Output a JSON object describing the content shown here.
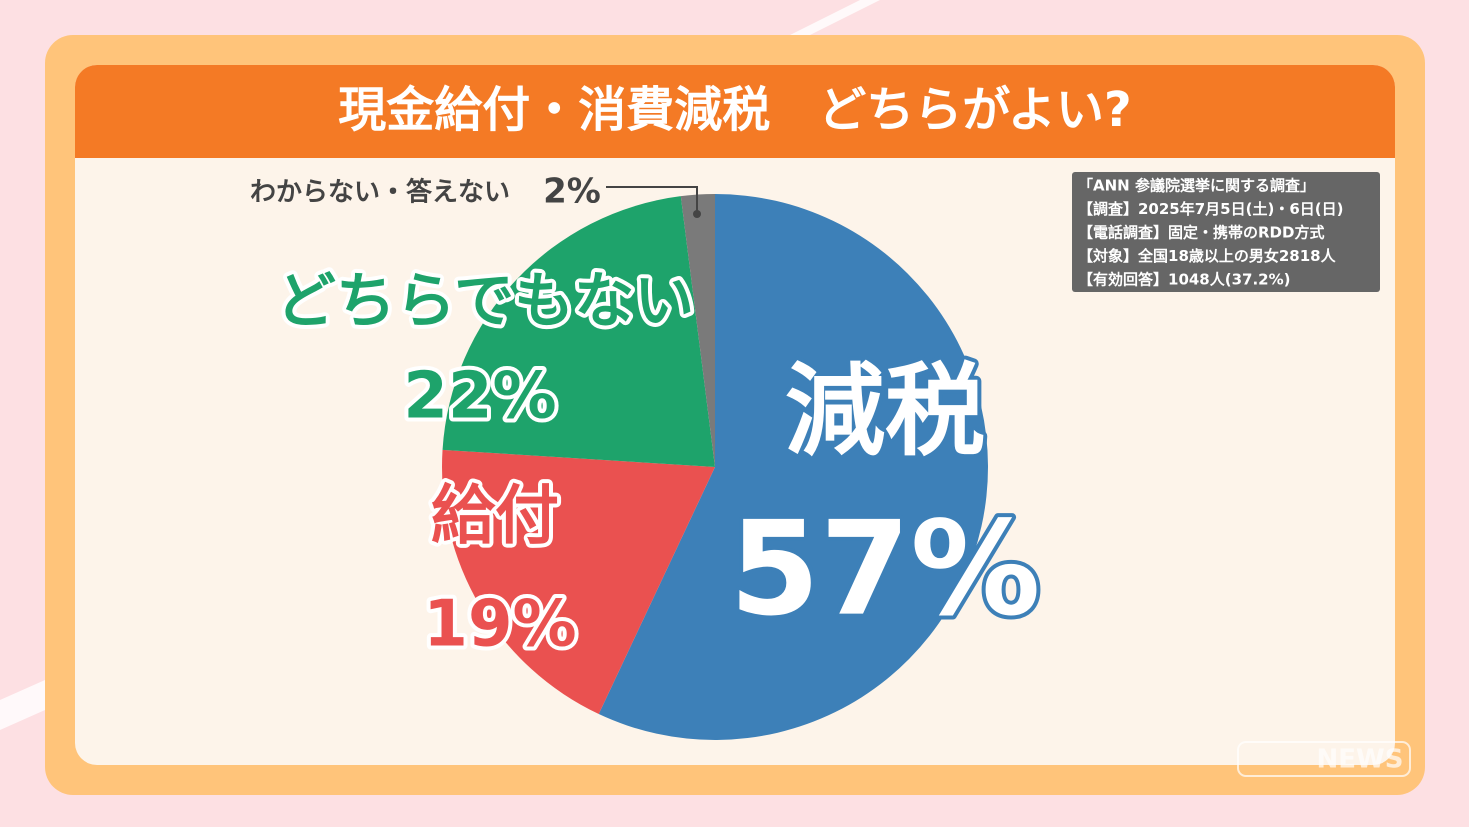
{
  "chart_data": {
    "type": "pie",
    "title": "現金給付・消費減税　どちらがよい?",
    "categories": [
      "減税",
      "給付",
      "どちらでもない",
      "わからない・答えない"
    ],
    "values": [
      57,
      19,
      22,
      2
    ],
    "value_labels": [
      "57%",
      "19%",
      "22%",
      "2%"
    ],
    "colors": [
      "#3d80b8",
      "#ea5150",
      "#1ea36b",
      "#7a7a7a"
    ],
    "start": "top",
    "direction": "clockwise",
    "note": [
      "「ANN 参議院選挙に関する調査」",
      "【調査】2025年7月5日(土)・6日(日)",
      "【電話調査】固定・携帯のRDD方式",
      "【対象】全国18歳以上の男女2818人",
      "【有効回答】1048人(37.2%)"
    ],
    "logo": "NEWS"
  }
}
